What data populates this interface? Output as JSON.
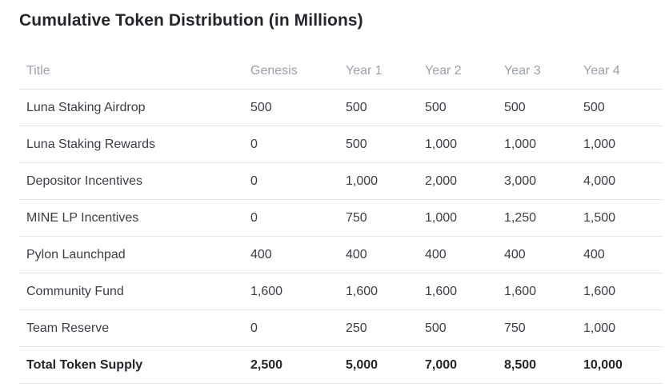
{
  "title": "Cumulative Token Distribution (in Millions)",
  "table": {
    "headers": [
      "Title",
      "Genesis",
      "Year 1",
      "Year 2",
      "Year 3",
      "Year 4"
    ],
    "rows": [
      [
        "Luna Staking Airdrop",
        "500",
        "500",
        "500",
        "500",
        "500"
      ],
      [
        "Luna Staking Rewards",
        "0",
        "500",
        "1,000",
        "1,000",
        "1,000"
      ],
      [
        "Depositor Incentives",
        "0",
        "1,000",
        "2,000",
        "3,000",
        "4,000"
      ],
      [
        "MINE LP Incentives",
        "0",
        "750",
        "1,000",
        "1,250",
        "1,500"
      ],
      [
        "Pylon Launchpad",
        "400",
        "400",
        "400",
        "400",
        "400"
      ],
      [
        "Community Fund",
        "1,600",
        "1,600",
        "1,600",
        "1,600",
        "1,600"
      ],
      [
        "Team Reserve",
        "0",
        "250",
        "500",
        "750",
        "1,000"
      ]
    ],
    "total": [
      "Total Token Supply",
      "2,500",
      "5,000",
      "7,000",
      "8,500",
      "10,000"
    ]
  }
}
